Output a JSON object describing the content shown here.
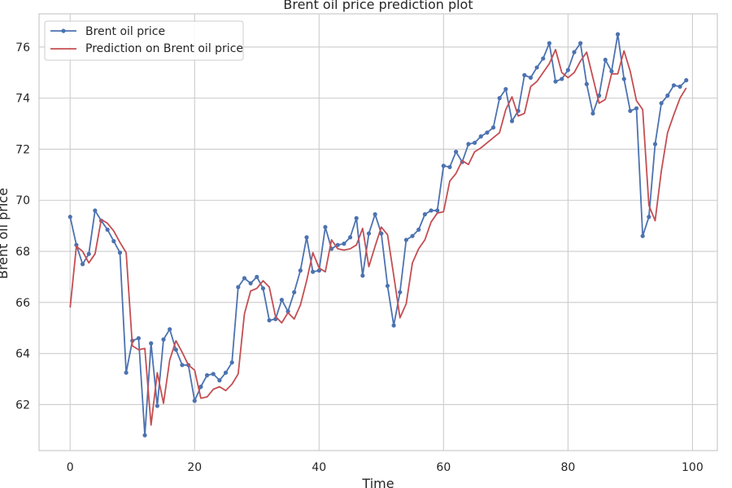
{
  "chart_data": {
    "type": "line",
    "title": "Brent oil price prediction plot",
    "xlabel": "Time",
    "ylabel": "Brent oil price",
    "xlim": [
      -5,
      104
    ],
    "ylim": [
      60.2,
      77.3
    ],
    "xticks": [
      0,
      20,
      40,
      60,
      80,
      100
    ],
    "yticks": [
      62,
      64,
      66,
      68,
      70,
      72,
      74,
      76
    ],
    "grid": true,
    "legend_position": "top-left",
    "series": [
      {
        "name": "Brent oil price",
        "color": "#4c72b0",
        "marker": "circle",
        "values": [
          69.35,
          68.25,
          67.5,
          67.9,
          69.6,
          69.2,
          68.85,
          68.4,
          67.95,
          63.25,
          64.5,
          64.6,
          60.8,
          64.4,
          61.95,
          64.55,
          64.95,
          64.15,
          63.55,
          63.55,
          62.15,
          62.7,
          63.15,
          63.2,
          62.95,
          63.25,
          63.65,
          66.6,
          66.95,
          66.75,
          67.0,
          66.55,
          65.3,
          65.35,
          66.1,
          65.65,
          66.4,
          67.25,
          68.55,
          67.2,
          67.25,
          68.95,
          68.1,
          68.25,
          68.3,
          68.55,
          69.3,
          67.05,
          68.7,
          69.45,
          68.7,
          66.65,
          65.1,
          66.4,
          68.45,
          68.6,
          68.85,
          69.45,
          69.6,
          69.6,
          71.35,
          71.3,
          71.9,
          71.5,
          72.2,
          72.25,
          72.5,
          72.65,
          72.85,
          74.0,
          74.35,
          73.1,
          73.5,
          74.9,
          74.8,
          75.2,
          75.55,
          76.15,
          74.65,
          74.75,
          75.1,
          75.8,
          76.15,
          74.55,
          73.4,
          74.1,
          75.5,
          75.05,
          76.5,
          74.75,
          73.5,
          73.6,
          68.6,
          69.35,
          72.2,
          73.8,
          74.1,
          74.5,
          74.45,
          74.7
        ]
      },
      {
        "name": "Prediction on Brent oil price",
        "color": "#c44e52",
        "marker": "none",
        "values": [
          65.8,
          68.2,
          68.0,
          67.55,
          67.9,
          69.25,
          69.1,
          68.8,
          68.35,
          67.95,
          64.3,
          64.15,
          64.2,
          61.2,
          63.25,
          62.05,
          63.75,
          64.5,
          64.05,
          63.55,
          63.35,
          62.25,
          62.3,
          62.6,
          62.7,
          62.55,
          62.8,
          63.2,
          65.55,
          66.45,
          66.55,
          66.85,
          66.6,
          65.45,
          65.2,
          65.6,
          65.35,
          65.9,
          66.85,
          67.95,
          67.35,
          67.2,
          68.45,
          68.1,
          68.05,
          68.1,
          68.25,
          68.9,
          67.4,
          68.2,
          68.95,
          68.65,
          67.05,
          65.4,
          65.95,
          67.55,
          68.1,
          68.45,
          69.15,
          69.5,
          69.55,
          70.75,
          71.05,
          71.55,
          71.4,
          71.9,
          72.05,
          72.25,
          72.45,
          72.65,
          73.55,
          74.05,
          73.3,
          73.4,
          74.45,
          74.65,
          75.0,
          75.35,
          75.9,
          75.0,
          74.8,
          75.0,
          75.45,
          75.8,
          74.8,
          73.8,
          73.95,
          74.95,
          74.95,
          75.85,
          75.05,
          73.9,
          73.55,
          69.8,
          69.2,
          71.15,
          72.65,
          73.35,
          74.0,
          74.4
        ]
      }
    ]
  }
}
